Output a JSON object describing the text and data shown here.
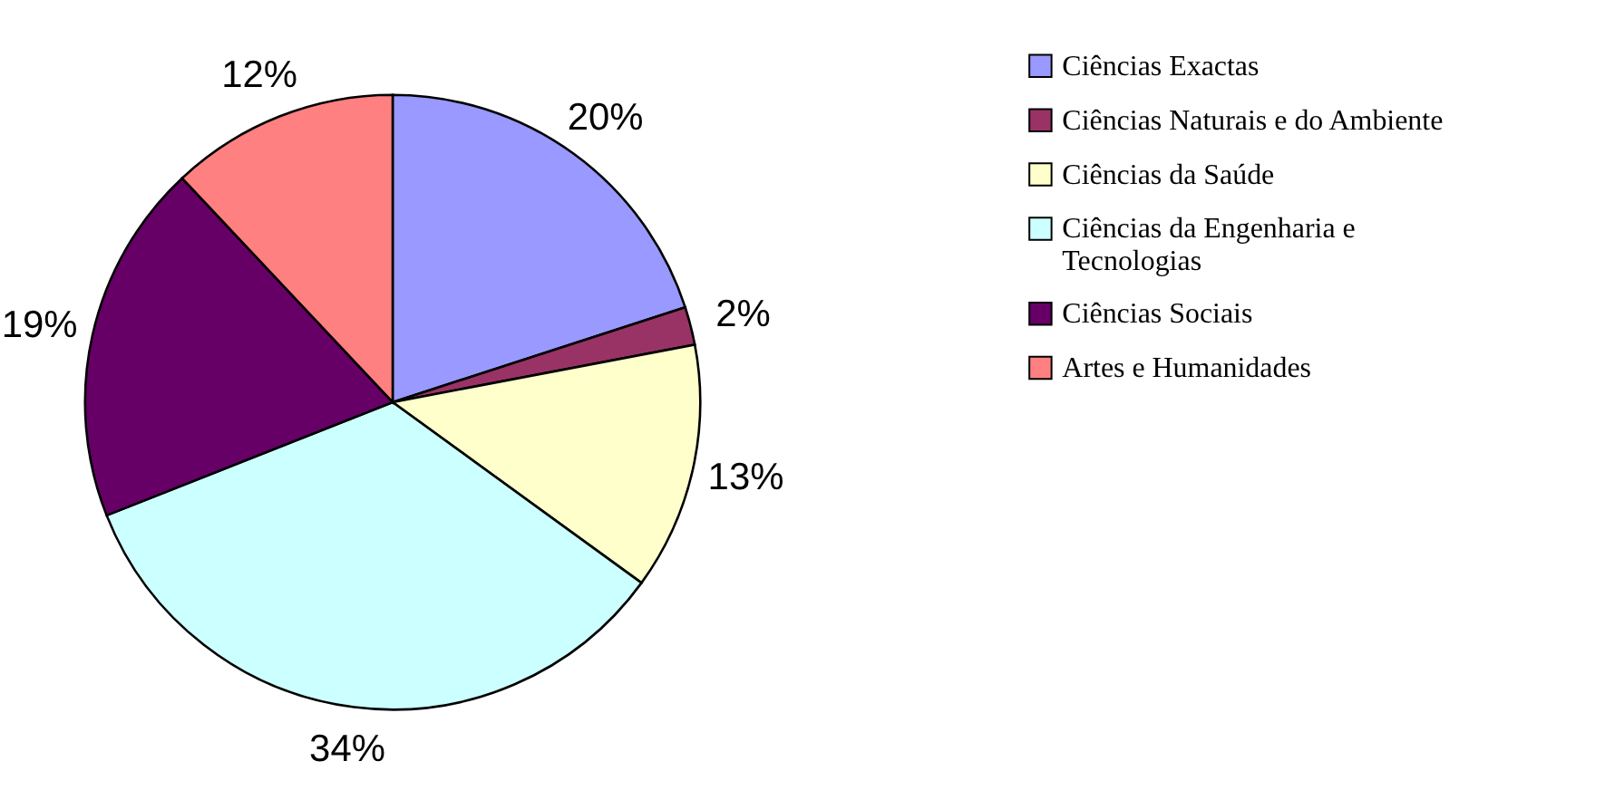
{
  "chart_data": {
    "type": "pie",
    "categories": [
      "Ciências Exactas",
      "Ciências Naturais e do Ambiente",
      "Ciências da Saúde",
      "Ciências da Engenharia e Tecnologias",
      "Ciências Sociais",
      "Artes e Humanidades"
    ],
    "values": [
      20,
      2,
      13,
      34,
      19,
      12
    ],
    "colors": [
      "#9999ff",
      "#993366",
      "#ffffcc",
      "#ccffff",
      "#660066",
      "#ff8080"
    ],
    "value_labels": [
      "20%",
      "2%",
      "13%",
      "34%",
      "19%",
      "12%"
    ],
    "legend": "right"
  }
}
